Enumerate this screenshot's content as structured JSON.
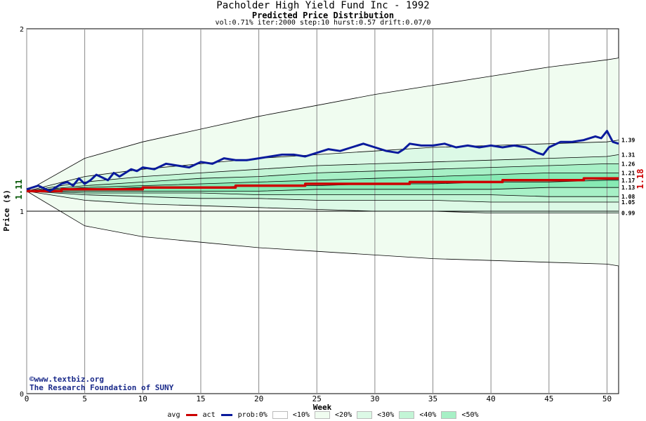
{
  "header": {
    "title": "Pacholder High Yield Fund Inc - 1992",
    "subtitle": "Predicted Price Distribution",
    "params": "vol:0.71% iter:2000 step:10 hurst:0.57 drift:0.07/0"
  },
  "credits": {
    "site": "©www.textbiz.org",
    "org": "The Research Foundation of SUNY"
  },
  "legend": {
    "avg": "avg",
    "act": "act",
    "prob": "prob:0%",
    "bands": [
      "<10%",
      "<20%",
      "<30%",
      "<40%",
      "<50%"
    ],
    "band_colors": [
      "#f0fcf0",
      "#dcf9e6",
      "#c3f5d6",
      "#a7f0c6",
      "#87eab4"
    ]
  },
  "chart_data": {
    "type": "line",
    "xlabel": "Week",
    "ylabel": "Price ($)",
    "xlim": [
      0,
      51
    ],
    "ylim": [
      0,
      2
    ],
    "xticks": [
      0,
      5,
      10,
      15,
      20,
      25,
      30,
      35,
      40,
      45,
      50
    ],
    "yticks": [
      0,
      1,
      2
    ],
    "start_value": 1.11,
    "start_label": "1.11",
    "current_value": 1.18,
    "current_label": "1.18",
    "right_labels": [
      "1.39",
      "1.31",
      "1.26",
      "1.21",
      "1.17",
      "1.13",
      "1.08",
      "1.05",
      "0.99"
    ],
    "band_x": [
      0,
      5,
      10,
      15,
      20,
      25,
      30,
      35,
      40,
      45,
      50,
      51
    ],
    "percentile_curves": [
      {
        "name": "1.84",
        "values": [
          1.11,
          1.29,
          1.38,
          1.45,
          1.52,
          1.58,
          1.64,
          1.69,
          1.74,
          1.79,
          1.83,
          1.84
        ]
      },
      {
        "name": "1.39",
        "values": [
          1.11,
          1.19,
          1.23,
          1.26,
          1.29,
          1.31,
          1.33,
          1.35,
          1.36,
          1.37,
          1.38,
          1.39
        ]
      },
      {
        "name": "1.31",
        "values": [
          1.11,
          1.16,
          1.19,
          1.21,
          1.23,
          1.25,
          1.26,
          1.27,
          1.28,
          1.29,
          1.3,
          1.31
        ]
      },
      {
        "name": "1.26",
        "values": [
          1.11,
          1.14,
          1.16,
          1.18,
          1.19,
          1.21,
          1.22,
          1.23,
          1.24,
          1.25,
          1.26,
          1.26
        ]
      },
      {
        "name": "1.21",
        "values": [
          1.11,
          1.13,
          1.14,
          1.15,
          1.16,
          1.17,
          1.18,
          1.19,
          1.2,
          1.21,
          1.21,
          1.21
        ]
      },
      {
        "name": "1.17",
        "values": [
          1.11,
          1.12,
          1.13,
          1.13,
          1.14,
          1.14,
          1.15,
          1.15,
          1.16,
          1.16,
          1.17,
          1.17
        ]
      },
      {
        "name": "1.13",
        "values": [
          1.11,
          1.11,
          1.11,
          1.11,
          1.11,
          1.12,
          1.12,
          1.12,
          1.12,
          1.13,
          1.13,
          1.13
        ]
      },
      {
        "name": "1.08",
        "values": [
          1.11,
          1.1,
          1.1,
          1.1,
          1.09,
          1.09,
          1.09,
          1.09,
          1.09,
          1.08,
          1.08,
          1.08
        ]
      },
      {
        "name": "1.05",
        "values": [
          1.11,
          1.09,
          1.08,
          1.07,
          1.07,
          1.06,
          1.06,
          1.06,
          1.05,
          1.05,
          1.05,
          1.05
        ]
      },
      {
        "name": "0.99",
        "values": [
          1.11,
          1.06,
          1.04,
          1.03,
          1.02,
          1.01,
          1.0,
          1.0,
          0.99,
          0.99,
          0.99,
          0.99
        ]
      },
      {
        "name": "0.70",
        "values": [
          1.11,
          0.92,
          0.86,
          0.83,
          0.8,
          0.78,
          0.76,
          0.74,
          0.73,
          0.72,
          0.71,
          0.7
        ]
      }
    ],
    "series": [
      {
        "name": "avg",
        "color": "#cc0000",
        "x": [
          0,
          3,
          3,
          10,
          10,
          18,
          18,
          24,
          24,
          33,
          33,
          41,
          41,
          48,
          48,
          51
        ],
        "values": [
          1.11,
          1.11,
          1.12,
          1.12,
          1.13,
          1.13,
          1.14,
          1.14,
          1.15,
          1.15,
          1.16,
          1.16,
          1.17,
          1.17,
          1.18,
          1.18
        ]
      },
      {
        "name": "act",
        "color": "#0a1a9c",
        "x": [
          0,
          1,
          2,
          2.5,
          3,
          3.5,
          4,
          4.5,
          5,
          5.5,
          6,
          7,
          7.5,
          8,
          9,
          9.5,
          10,
          11,
          12,
          13,
          14,
          15,
          16,
          17,
          18,
          19,
          20,
          21,
          22,
          23,
          24,
          25,
          26,
          27,
          28,
          29,
          30,
          31,
          32,
          32.5,
          33,
          34,
          35,
          36,
          37,
          38,
          39,
          40,
          41,
          42,
          43,
          44,
          44.5,
          45,
          46,
          47,
          48,
          49,
          49.5,
          50,
          50.5,
          51
        ],
        "values": [
          1.12,
          1.14,
          1.11,
          1.13,
          1.15,
          1.16,
          1.14,
          1.18,
          1.15,
          1.17,
          1.2,
          1.17,
          1.21,
          1.19,
          1.23,
          1.22,
          1.24,
          1.23,
          1.26,
          1.25,
          1.24,
          1.27,
          1.26,
          1.29,
          1.28,
          1.28,
          1.29,
          1.3,
          1.31,
          1.31,
          1.3,
          1.32,
          1.34,
          1.33,
          1.35,
          1.37,
          1.35,
          1.33,
          1.32,
          1.34,
          1.37,
          1.36,
          1.36,
          1.37,
          1.35,
          1.36,
          1.35,
          1.36,
          1.35,
          1.36,
          1.35,
          1.32,
          1.31,
          1.35,
          1.38,
          1.38,
          1.39,
          1.41,
          1.4,
          1.44,
          1.38,
          1.37
        ]
      }
    ]
  }
}
